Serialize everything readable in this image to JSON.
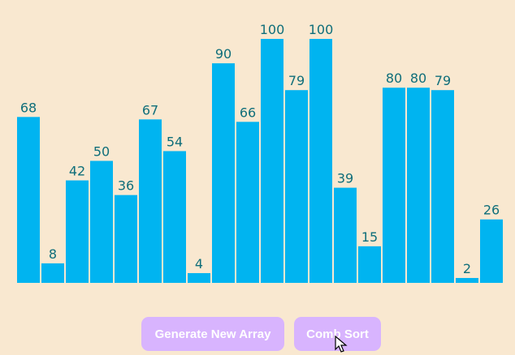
{
  "chart_data": {
    "type": "bar",
    "values": [
      68,
      8,
      42,
      50,
      36,
      67,
      54,
      4,
      90,
      66,
      100,
      79,
      100,
      39,
      15,
      80,
      80,
      79,
      2,
      26
    ],
    "ylim": [
      0,
      100
    ],
    "bar_color": "#00b4f0",
    "label_color": "#0f6e7a"
  },
  "controls": {
    "generate_label": "Generate New Array",
    "sort_label": "Comb Sort",
    "button_color": "#d8b4fe"
  },
  "colors": {
    "background": "#f9e8d0"
  }
}
